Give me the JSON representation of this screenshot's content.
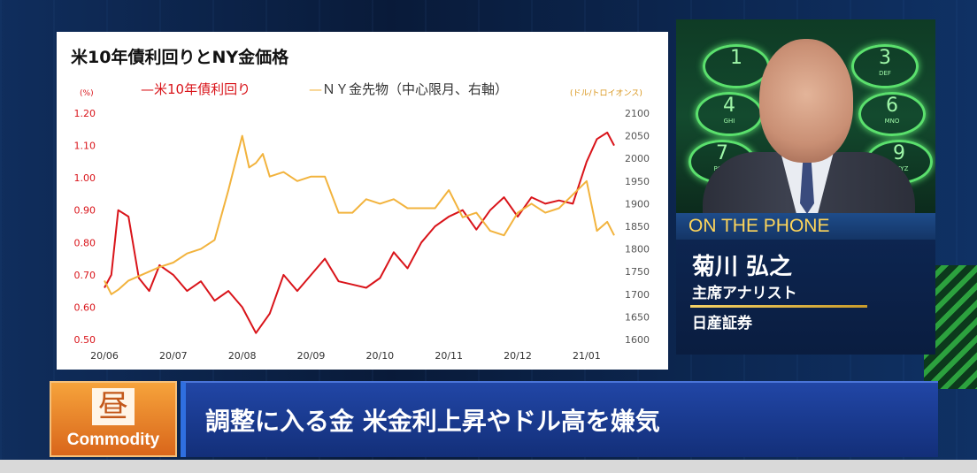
{
  "chart_data": {
    "type": "line",
    "title": "米10年債利回りとNY金価格",
    "left_unit": "(%)",
    "right_unit": "(ドル/トロイオンス)",
    "categories": [
      "20/06",
      "20/07",
      "20/08",
      "20/09",
      "20/10",
      "20/11",
      "20/12",
      "21/01"
    ],
    "ylim_left": [
      0.5,
      1.2
    ],
    "yticks_left": [
      "1.20",
      "1.10",
      "1.00",
      "0.90",
      "0.80",
      "0.70",
      "0.60",
      "0.50"
    ],
    "ylim_right": [
      1600,
      2100
    ],
    "yticks_right": [
      "2100",
      "2050",
      "2000",
      "1950",
      "1900",
      "1850",
      "1800",
      "1750",
      "1700",
      "1650",
      "1600"
    ],
    "grid": false,
    "legend_position": "top",
    "series": [
      {
        "name": "米10年債利回り",
        "axis": "left",
        "color": "#d9141a",
        "x": [
          0,
          0.1,
          0.2,
          0.35,
          0.5,
          0.65,
          0.8,
          1.0,
          1.2,
          1.4,
          1.6,
          1.8,
          2.0,
          2.2,
          2.4,
          2.6,
          2.8,
          3.0,
          3.2,
          3.4,
          3.6,
          3.8,
          4.0,
          4.2,
          4.4,
          4.6,
          4.8,
          5.0,
          5.2,
          5.4,
          5.6,
          5.8,
          6.0,
          6.2,
          6.4,
          6.6,
          6.8,
          7.0,
          7.15,
          7.3,
          7.4
        ],
        "y": [
          0.66,
          0.7,
          0.9,
          0.88,
          0.69,
          0.65,
          0.73,
          0.7,
          0.65,
          0.68,
          0.62,
          0.65,
          0.6,
          0.52,
          0.58,
          0.7,
          0.65,
          0.7,
          0.75,
          0.68,
          0.67,
          0.66,
          0.69,
          0.77,
          0.72,
          0.8,
          0.85,
          0.88,
          0.9,
          0.84,
          0.9,
          0.94,
          0.88,
          0.94,
          0.92,
          0.93,
          0.92,
          1.05,
          1.12,
          1.14,
          1.1
        ]
      },
      {
        "name": "ＮＹ金先物（中心限月、右軸）",
        "axis": "right",
        "color": "#f2b33d",
        "x": [
          0,
          0.1,
          0.2,
          0.35,
          0.5,
          0.65,
          0.8,
          1.0,
          1.2,
          1.4,
          1.6,
          1.8,
          2.0,
          2.1,
          2.2,
          2.3,
          2.4,
          2.6,
          2.8,
          3.0,
          3.2,
          3.4,
          3.6,
          3.8,
          4.0,
          4.2,
          4.4,
          4.6,
          4.8,
          5.0,
          5.2,
          5.4,
          5.6,
          5.8,
          6.0,
          6.2,
          6.4,
          6.6,
          6.8,
          7.0,
          7.15,
          7.3,
          7.4
        ],
        "y": [
          1730,
          1700,
          1710,
          1730,
          1740,
          1750,
          1760,
          1770,
          1790,
          1800,
          1820,
          1930,
          2050,
          1980,
          1990,
          2010,
          1960,
          1970,
          1950,
          1960,
          1960,
          1880,
          1880,
          1910,
          1900,
          1910,
          1890,
          1890,
          1890,
          1930,
          1870,
          1880,
          1840,
          1830,
          1880,
          1900,
          1880,
          1890,
          1920,
          1950,
          1840,
          1860,
          1830
        ]
      }
    ]
  },
  "phone": {
    "keys": [
      {
        "digit": "1",
        "letters": ""
      },
      {
        "digit": "3",
        "letters": "DEF"
      },
      {
        "digit": "4",
        "letters": "GHI"
      },
      {
        "digit": "6",
        "letters": "MNO"
      },
      {
        "digit": "7",
        "letters": "PQRS"
      },
      {
        "digit": "9",
        "letters": "WXYZ"
      }
    ]
  },
  "guest": {
    "on_phone": "ON THE PHONE",
    "name": "菊川 弘之",
    "title": "主席アナリスト",
    "company": "日産証券"
  },
  "segment": {
    "badge_kanji": "昼",
    "badge_label": "Commodity",
    "headline": "調整に入る金 米金利上昇やドル高を嫌気"
  }
}
